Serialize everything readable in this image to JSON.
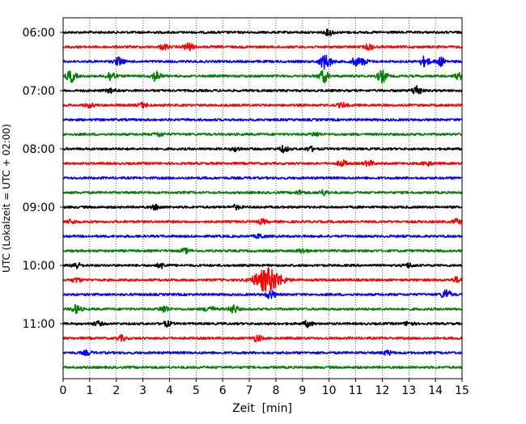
{
  "chart_data": {
    "type": "line",
    "xlabel": "Zeit  [min]",
    "ylabel": "UTC (Lokalzeit = UTC + 02:00)",
    "xlim": [
      0,
      15
    ],
    "x_ticks": [
      "0",
      "1",
      "2",
      "3",
      "4",
      "5",
      "6",
      "7",
      "8",
      "9",
      "10",
      "11",
      "12",
      "13",
      "14",
      "15"
    ],
    "y_tick_labels": [
      "06:00",
      "07:00",
      "08:00",
      "09:00",
      "10:00",
      "11:00"
    ],
    "trace_count": 24,
    "trace_interval_minutes": 15,
    "start_time": "06:00",
    "grid": "vertical dotted at each minute",
    "series_colors": [
      "#000000",
      "#ff0000",
      "#0000ff",
      "#008000"
    ],
    "series": [
      {
        "start": "06:00",
        "color": "#000000",
        "events": [
          [
            10.0,
            1.5
          ]
        ]
      },
      {
        "start": "06:15",
        "color": "#ff0000",
        "events": [
          [
            4.7,
            2.0
          ],
          [
            3.8,
            1.2
          ],
          [
            11.5,
            1.3
          ]
        ]
      },
      {
        "start": "06:30",
        "color": "#0000ff",
        "events": [
          [
            2.1,
            2.0
          ],
          [
            9.8,
            3.0
          ],
          [
            10.0,
            1.5
          ],
          [
            11.0,
            1.8
          ],
          [
            11.3,
            1.3
          ],
          [
            13.6,
            2.5
          ],
          [
            14.2,
            2.0
          ]
        ]
      },
      {
        "start": "06:45",
        "color": "#008000",
        "events": [
          [
            0.3,
            3.0
          ],
          [
            1.8,
            2.5
          ],
          [
            3.5,
            2.5
          ],
          [
            9.8,
            3.0
          ],
          [
            12.0,
            3.0
          ],
          [
            14.9,
            1.5
          ]
        ]
      },
      {
        "start": "07:00",
        "color": "#000000",
        "events": [
          [
            1.8,
            1.0
          ],
          [
            13.3,
            2.5
          ]
        ]
      },
      {
        "start": "07:15",
        "color": "#ff0000",
        "events": [
          [
            1.0,
            1.0
          ],
          [
            3.0,
            1.2
          ],
          [
            10.5,
            1.0
          ]
        ]
      },
      {
        "start": "07:30",
        "color": "#0000ff",
        "events": []
      },
      {
        "start": "07:45",
        "color": "#008000",
        "events": [
          [
            3.6,
            1.0
          ],
          [
            9.5,
            1.0
          ]
        ]
      },
      {
        "start": "08:00",
        "color": "#000000",
        "events": [
          [
            6.5,
            1.0
          ],
          [
            8.3,
            1.5
          ],
          [
            9.3,
            1.0
          ]
        ]
      },
      {
        "start": "08:15",
        "color": "#ff0000",
        "events": [
          [
            10.5,
            1.5
          ],
          [
            11.5,
            1.3
          ],
          [
            13.7,
            1.0
          ]
        ]
      },
      {
        "start": "08:30",
        "color": "#0000ff",
        "events": []
      },
      {
        "start": "08:45",
        "color": "#008000",
        "events": [
          [
            8.9,
            1.0
          ],
          [
            9.8,
            1.2
          ]
        ]
      },
      {
        "start": "09:00",
        "color": "#000000",
        "events": [
          [
            3.5,
            1.2
          ],
          [
            6.5,
            1.0
          ]
        ]
      },
      {
        "start": "09:15",
        "color": "#ff0000",
        "events": [
          [
            0.3,
            1.0
          ],
          [
            7.5,
            1.0
          ],
          [
            14.8,
            1.2
          ]
        ]
      },
      {
        "start": "09:30",
        "color": "#0000ff",
        "events": [
          [
            7.4,
            1.0
          ]
        ]
      },
      {
        "start": "09:45",
        "color": "#008000",
        "events": [
          [
            4.6,
            1.0
          ],
          [
            9.0,
            1.0
          ]
        ]
      },
      {
        "start": "10:00",
        "color": "#000000",
        "events": [
          [
            0.5,
            1.5
          ],
          [
            3.7,
            1.2
          ],
          [
            13.0,
            1.0
          ]
        ]
      },
      {
        "start": "10:15",
        "color": "#ff0000",
        "events": [
          [
            7.7,
            6.0
          ],
          [
            0.5,
            1.0
          ],
          [
            14.8,
            1.2
          ]
        ]
      },
      {
        "start": "10:30",
        "color": "#0000ff",
        "events": [
          [
            14.4,
            2.5
          ],
          [
            7.8,
            2.0
          ]
        ]
      },
      {
        "start": "10:45",
        "color": "#008000",
        "events": [
          [
            0.5,
            2.0
          ],
          [
            3.8,
            1.8
          ],
          [
            5.5,
            1.5
          ],
          [
            6.4,
            2.0
          ]
        ]
      },
      {
        "start": "11:00",
        "color": "#000000",
        "events": [
          [
            1.3,
            1.0
          ],
          [
            3.9,
            1.2
          ],
          [
            9.2,
            1.5
          ],
          [
            13.0,
            1.0
          ]
        ]
      },
      {
        "start": "11:15",
        "color": "#ff0000",
        "events": [
          [
            2.2,
            1.2
          ],
          [
            7.3,
            1.5
          ]
        ]
      },
      {
        "start": "11:30",
        "color": "#0000ff",
        "events": [
          [
            0.9,
            1.0
          ],
          [
            12.2,
            1.0
          ]
        ]
      },
      {
        "start": "11:45",
        "color": "#008000",
        "events": []
      }
    ]
  }
}
